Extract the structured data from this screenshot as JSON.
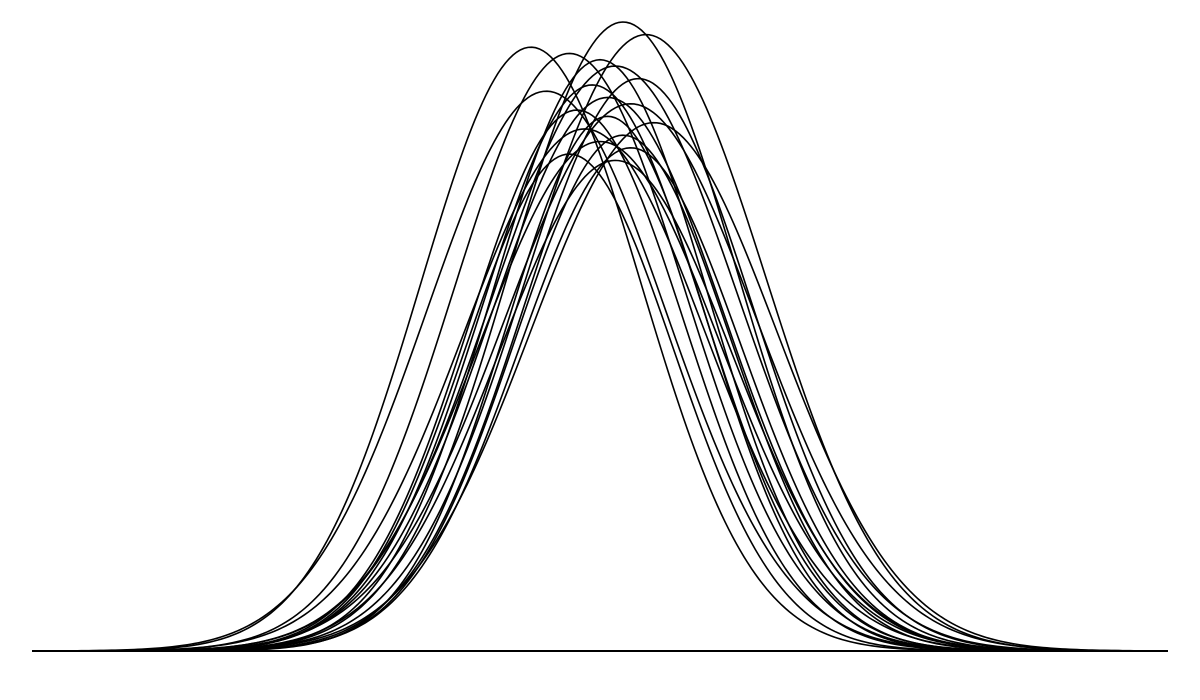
{
  "chart_data": {
    "type": "line",
    "xlim": [
      -3.7,
      3.7
    ],
    "ylim": [
      0,
      1.0
    ],
    "grid": false,
    "axes_visible": false,
    "baseline": true,
    "line_color": "#000000",
    "background_color": "#ffffff",
    "series": [
      {
        "mean": -0.45,
        "sd": 0.72,
        "peak": 0.96
      },
      {
        "mean": 0.15,
        "sd": 0.74,
        "peak": 1.0
      },
      {
        "mean": 0.3,
        "sd": 0.78,
        "peak": 0.98
      },
      {
        "mean": -0.2,
        "sd": 0.75,
        "peak": 0.95
      },
      {
        "mean": 0.0,
        "sd": 0.7,
        "peak": 0.94
      },
      {
        "mean": 0.1,
        "sd": 0.8,
        "peak": 0.93
      },
      {
        "mean": -0.35,
        "sd": 0.78,
        "peak": 0.89
      },
      {
        "mean": 0.25,
        "sd": 0.74,
        "peak": 0.91
      },
      {
        "mean": -0.05,
        "sd": 0.72,
        "peak": 0.9
      },
      {
        "mean": 0.05,
        "sd": 0.76,
        "peak": 0.88
      },
      {
        "mean": 0.2,
        "sd": 0.82,
        "peak": 0.87
      },
      {
        "mean": -0.15,
        "sd": 0.7,
        "peak": 0.86
      },
      {
        "mean": 0.05,
        "sd": 0.66,
        "peak": 0.85
      },
      {
        "mean": 0.35,
        "sd": 0.8,
        "peak": 0.84
      },
      {
        "mean": -0.1,
        "sd": 0.79,
        "peak": 0.83
      },
      {
        "mean": 0.15,
        "sd": 0.7,
        "peak": 0.82
      },
      {
        "mean": 0.0,
        "sd": 0.78,
        "peak": 0.81
      },
      {
        "mean": 0.2,
        "sd": 0.72,
        "peak": 0.8
      },
      {
        "mean": -0.2,
        "sd": 0.68,
        "peak": 0.79
      },
      {
        "mean": 0.1,
        "sd": 0.76,
        "peak": 0.78
      }
    ]
  }
}
